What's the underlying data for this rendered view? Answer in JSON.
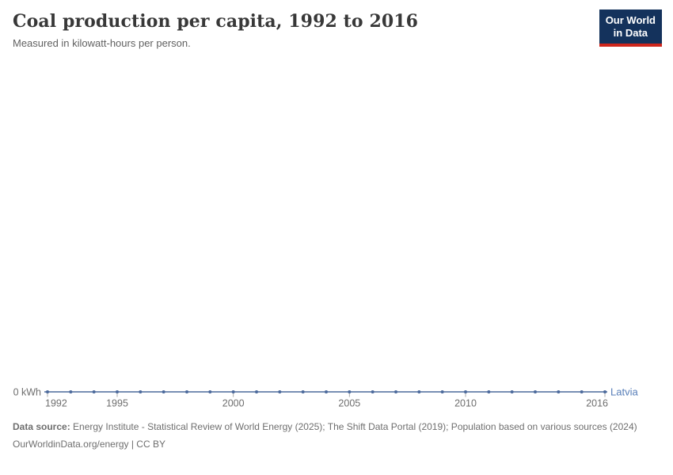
{
  "header": {
    "title": "Coal production per capita, 1992 to 2016",
    "subtitle": "Measured in kilowatt-hours per person.",
    "logo": {
      "line1": "Our World",
      "line2": "in Data"
    }
  },
  "chart_data": {
    "type": "line",
    "title": "Coal production per capita, 1992 to 2016",
    "subtitle": "Measured in kilowatt-hours per person.",
    "unit": "kilowatt-hours per person",
    "x": [
      1992,
      1993,
      1994,
      1995,
      1996,
      1997,
      1998,
      1999,
      2000,
      2001,
      2002,
      2003,
      2004,
      2005,
      2006,
      2007,
      2008,
      2009,
      2010,
      2011,
      2012,
      2013,
      2014,
      2015,
      2016
    ],
    "series": [
      {
        "name": "Latvia",
        "color": "#4C6A9C",
        "label_color": "#577EB8",
        "values": [
          0,
          0,
          0,
          0,
          0,
          0,
          0,
          0,
          0,
          0,
          0,
          0,
          0,
          0,
          0,
          0,
          0,
          0,
          0,
          0,
          0,
          0,
          0,
          0,
          0
        ]
      }
    ],
    "x_ticks": [
      1992,
      1995,
      2000,
      2005,
      2010,
      2016
    ],
    "y_zero_label": "0 kWh",
    "ylim": [
      0,
      0
    ],
    "grid": false,
    "legend_position": "line-end",
    "marker": "point-per-year"
  },
  "footer": {
    "data_source_label": "Data source:",
    "data_source_text": " Energy Institute - Statistical Review of World Energy (2025); The Shift Data Portal (2019); Population based on various sources (2024)",
    "link_line": "OurWorldinData.org/energy | CC BY"
  },
  "colors": {
    "series_line": "#4C6A9C",
    "entity_label": "#577EB8",
    "axis_text": "#6e6e6e",
    "tick_mark": "#A9A9A9",
    "title_text": "#383838",
    "subtitle_text": "#616161",
    "footer_text": "#6e6e6e",
    "logo_background": "#14325C",
    "logo_accent": "#CE261C"
  }
}
